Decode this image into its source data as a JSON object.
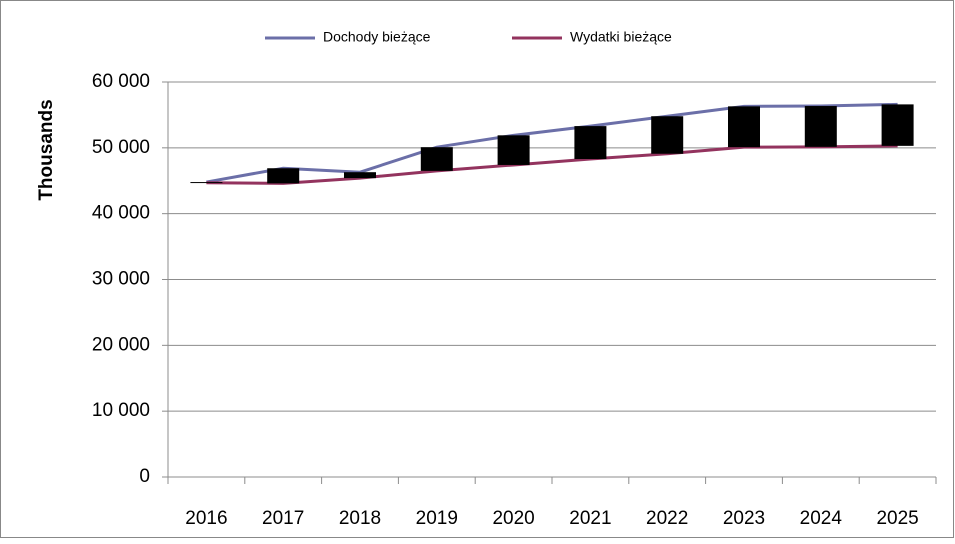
{
  "chart_data": {
    "type": "line",
    "categories": [
      "2016",
      "2017",
      "2018",
      "2019",
      "2020",
      "2021",
      "2022",
      "2023",
      "2024",
      "2025"
    ],
    "series": [
      {
        "name": "Dochody bieżące",
        "color": "#6b6fa8",
        "values": [
          44800,
          46900,
          46300,
          50100,
          51900,
          53300,
          54800,
          56300,
          56350,
          56600
        ]
      },
      {
        "name": "Wydatki bieżące",
        "color": "#93335e",
        "values": [
          44700,
          44600,
          45400,
          46500,
          47400,
          48300,
          49100,
          50100,
          50150,
          50300
        ]
      }
    ],
    "ylabel": "Thousands",
    "ylim": [
      0,
      60000
    ],
    "yticks": [
      0,
      {
        "value": 10000,
        "label": "10 000"
      },
      {
        "value": 20000,
        "label": "20 000"
      },
      {
        "value": 30000,
        "label": "30 000"
      },
      {
        "value": 40000,
        "label": "40 000"
      },
      {
        "value": 50000,
        "label": "50 000"
      },
      {
        "value": 60000,
        "label": "60 000"
      }
    ],
    "grid": true,
    "updown_bars": true,
    "updown_color": "#000000",
    "legend": "top"
  }
}
